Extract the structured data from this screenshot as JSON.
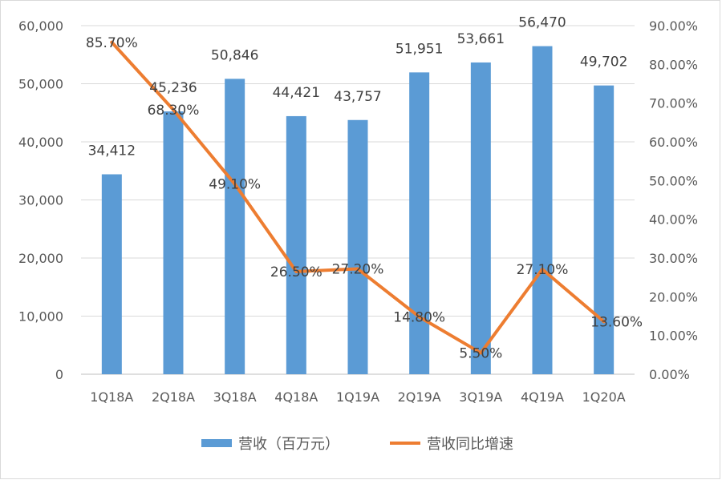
{
  "chart_data": {
    "type": "bar",
    "categories": [
      "1Q18A",
      "2Q18A",
      "3Q18A",
      "4Q18A",
      "1Q19A",
      "2Q19A",
      "3Q19A",
      "4Q19A",
      "1Q20A"
    ],
    "series": [
      {
        "name": "营收（百万元）",
        "type": "bar",
        "axis": "left",
        "color": "#5b9bd5",
        "values": [
          34412,
          45236,
          50846,
          44421,
          43757,
          51951,
          53661,
          56470,
          49702
        ],
        "labels": [
          "34,412",
          "45,236",
          "50,846",
          "44,421",
          "43,757",
          "51,951",
          "53,661",
          "56,470",
          "49,702"
        ]
      },
      {
        "name": "营收同比增速",
        "type": "line",
        "axis": "right",
        "color": "#ed7d31",
        "values": [
          85.7,
          68.3,
          49.1,
          26.5,
          27.2,
          14.8,
          5.5,
          27.1,
          13.6
        ],
        "labels": [
          "85.70%",
          "68.30%",
          "49.10%",
          "26.50%",
          "27.20%",
          "14.80%",
          "5.50%",
          "27.10%",
          "13.60%"
        ]
      }
    ],
    "y_left": {
      "ylim": [
        0,
        60000
      ],
      "ticks": [
        0,
        10000,
        20000,
        30000,
        40000,
        50000,
        60000
      ],
      "tick_labels": [
        "0",
        "10,000",
        "20,000",
        "30,000",
        "40,000",
        "50,000",
        "60,000"
      ]
    },
    "y_right": {
      "ylim": [
        0,
        90
      ],
      "ticks": [
        0,
        10,
        20,
        30,
        40,
        50,
        60,
        70,
        80,
        90
      ],
      "tick_labels": [
        "0.00%",
        "10.00%",
        "20.00%",
        "30.00%",
        "40.00%",
        "50.00%",
        "60.00%",
        "70.00%",
        "80.00%",
        "90.00%"
      ]
    },
    "grid": true,
    "legend": "bottom"
  }
}
